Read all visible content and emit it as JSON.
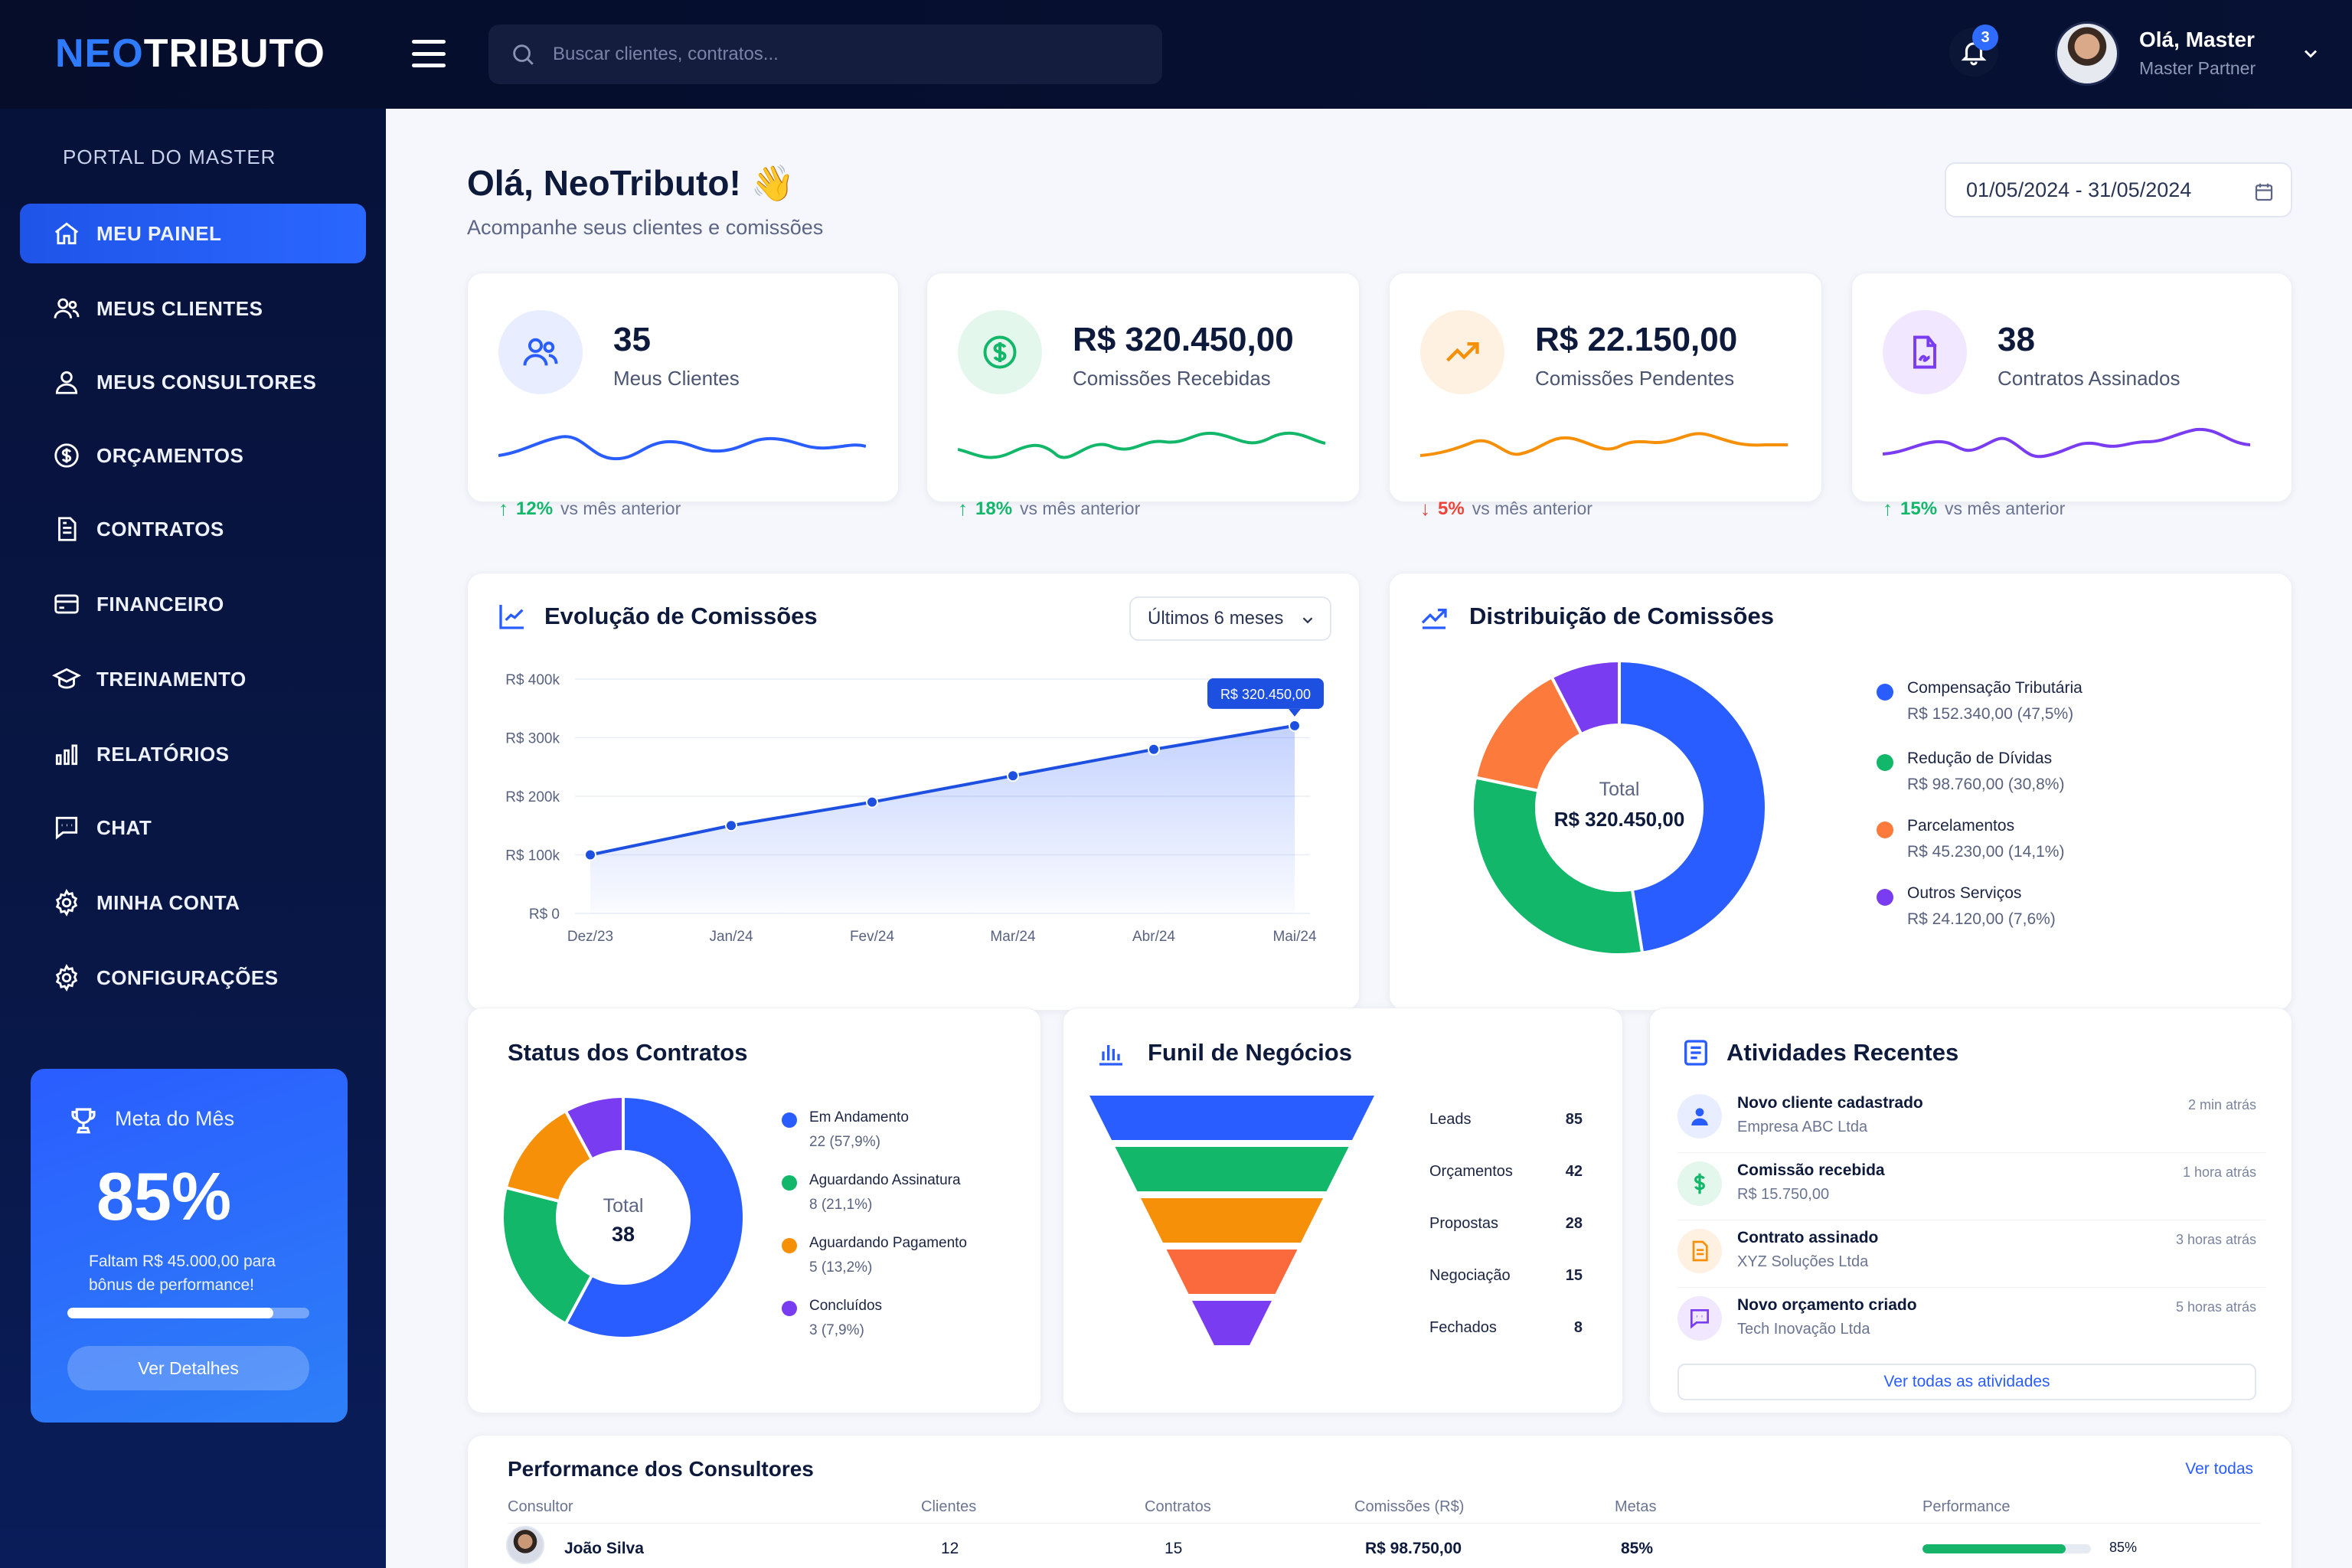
{
  "brand": {
    "neo": "NEO",
    "tributo": "TRIBUTO"
  },
  "search": {
    "placeholder": "Buscar clientes, contratos..."
  },
  "notifications": {
    "count": "3"
  },
  "user": {
    "name": "Olá, Master",
    "role": "Master Partner"
  },
  "sidebar": {
    "title": "PORTAL DO MASTER",
    "items": [
      {
        "label": "MEU PAINEL",
        "icon": "home-icon",
        "active": true
      },
      {
        "label": "MEUS CLIENTES",
        "icon": "users-icon"
      },
      {
        "label": "MEUS CONSULTORES",
        "icon": "user-icon"
      },
      {
        "label": "ORÇAMENTOS",
        "icon": "dollar-circle-icon"
      },
      {
        "label": "CONTRATOS",
        "icon": "document-icon"
      },
      {
        "label": "FINANCEIRO",
        "icon": "card-icon"
      },
      {
        "label": "TREINAMENTO",
        "icon": "graduation-cap-icon"
      },
      {
        "label": "RELATÓRIOS",
        "icon": "bar-chart-icon"
      },
      {
        "label": "CHAT",
        "icon": "chat-icon"
      },
      {
        "label": "MINHA CONTA",
        "icon": "gear-icon"
      },
      {
        "label": "CONFIGURAÇÕES",
        "icon": "gear-icon"
      }
    ]
  },
  "goal": {
    "title": "Meta do Mês",
    "percent": "85%",
    "progress": 0.85,
    "description": "Faltam R$ 45.000,00 para bônus de performance!",
    "button": "Ver Detalhes"
  },
  "header": {
    "greeting": "Olá, NeoTributo! 👋",
    "subtitle": "Acompanhe seus clientes e comissões",
    "date_range": "01/05/2024 - 31/05/2024"
  },
  "stats": [
    {
      "value": "35",
      "label": "Meus Clientes",
      "change": "12%",
      "trend": "up",
      "suffix": "vs mês anterior",
      "color": "#2a5dff",
      "icon": "users-icon"
    },
    {
      "value": "R$ 320.450,00",
      "label": "Comissões Recebidas",
      "change": "18%",
      "trend": "up",
      "suffix": "vs mês anterior",
      "color": "#12b76a",
      "icon": "dollar-circle-icon"
    },
    {
      "value": "R$ 22.150,00",
      "label": "Comissões Pendentes",
      "change": "5%",
      "trend": "down",
      "suffix": "vs mês anterior",
      "color": "#f79009",
      "icon": "trend-up-icon"
    },
    {
      "value": "38",
      "label": "Contratos Assinados",
      "change": "15%",
      "trend": "up",
      "suffix": "vs mês anterior",
      "color": "#7a3cf0",
      "icon": "signed-doc-icon"
    }
  ],
  "evolution": {
    "title": "Evolução de Comissões",
    "period": "Últimos 6 meses",
    "tooltip": "R$ 320.450,00"
  },
  "distribution": {
    "title": "Distribuição de Comissões",
    "total_label": "Total",
    "total_value": "R$ 320.450,00",
    "legend": [
      {
        "name": "Compensação Tributária",
        "value": "R$ 152.340,00 (47,5%)",
        "color": "#2a5dff"
      },
      {
        "name": "Redução de Dívidas",
        "value": "R$ 98.760,00 (30,8%)",
        "color": "#12b76a"
      },
      {
        "name": "Parcelamentos",
        "value": "R$ 45.230,00 (14,1%)",
        "color": "#fb7a3c"
      },
      {
        "name": "Outros Serviços",
        "value": "R$ 24.120,00 (7,6%)",
        "color": "#7a3cf0"
      }
    ]
  },
  "contracts": {
    "title": "Status dos Contratos",
    "total_label": "Total",
    "total_value": "38",
    "legend": [
      {
        "name": "Em Andamento",
        "value": "22 (57,9%)",
        "color": "#2a5dff"
      },
      {
        "name": "Aguardando Assinatura",
        "value": "8 (21,1%)",
        "color": "#12b76a"
      },
      {
        "name": "Aguardando Pagamento",
        "value": "5 (13,2%)",
        "color": "#f79009"
      },
      {
        "name": "Concluídos",
        "value": "3 (7,9%)",
        "color": "#7a3cf0"
      }
    ]
  },
  "funnel": {
    "title": "Funil de Negócios",
    "stages": [
      {
        "name": "Leads",
        "value": "85",
        "color": "#2a5dff"
      },
      {
        "name": "Orçamentos",
        "value": "42",
        "color": "#12b76a"
      },
      {
        "name": "Propostas",
        "value": "28",
        "color": "#f79009"
      },
      {
        "name": "Negociação",
        "value": "15",
        "color": "#fb6a3c"
      },
      {
        "name": "Fechados",
        "value": "8",
        "color": "#7a3cf0"
      }
    ]
  },
  "activities": {
    "title": "Atividades Recentes",
    "items": [
      {
        "title": "Novo cliente cadastrado",
        "sub": "Empresa ABC Ltda",
        "time": "2 min atrás",
        "icon": "user-icon",
        "color": "#2a5dff"
      },
      {
        "title": "Comissão recebida",
        "sub": "R$ 15.750,00",
        "time": "1 hora atrás",
        "icon": "dollar-icon",
        "color": "#12b76a"
      },
      {
        "title": "Contrato assinado",
        "sub": "XYZ Soluções Ltda",
        "time": "3 horas atrás",
        "icon": "document-icon",
        "color": "#f79009"
      },
      {
        "title": "Novo orçamento criado",
        "sub": "Tech Inovação Ltda",
        "time": "5 horas atrás",
        "icon": "chat-icon",
        "color": "#7a3cf0"
      }
    ],
    "button": "Ver todas as atividades"
  },
  "performance": {
    "title": "Performance dos Consultores",
    "link": "Ver todas",
    "columns": [
      "Consultor",
      "Clientes",
      "Contratos",
      "Comissões (R$)",
      "Metas",
      "Performance"
    ],
    "rows": [
      {
        "name": "João Silva",
        "clients": "12",
        "contracts": "15",
        "commissions": "R$ 98.750,00",
        "goal": "85%",
        "performance": "85%",
        "performance_value": 0.85
      }
    ]
  },
  "chart_data": [
    {
      "type": "line",
      "title": "Evolução de Comissões",
      "categories": [
        "Dez/23",
        "Jan/24",
        "Fev/24",
        "Mar/24",
        "Abr/24",
        "Mai/24"
      ],
      "values": [
        100000,
        150000,
        190000,
        235000,
        280000,
        320450
      ],
      "y_ticks": [
        "R$ 0",
        "R$ 100k",
        "R$ 200k",
        "R$ 300k",
        "R$ 400k"
      ],
      "ylim": [
        0,
        400000
      ],
      "grid": true
    },
    {
      "type": "pie",
      "title": "Distribuição de Comissões",
      "labels": [
        "Compensação Tributária",
        "Redução de Dívidas",
        "Parcelamentos",
        "Outros Serviços"
      ],
      "values": [
        47.5,
        30.8,
        14.1,
        7.6
      ]
    },
    {
      "type": "pie",
      "title": "Status dos Contratos",
      "labels": [
        "Em Andamento",
        "Aguardando Assinatura",
        "Aguardando Pagamento",
        "Concluídos"
      ],
      "values": [
        22,
        8,
        5,
        3
      ]
    },
    {
      "type": "bar",
      "title": "Funil de Negócios",
      "categories": [
        "Leads",
        "Orçamentos",
        "Propostas",
        "Negociação",
        "Fechados"
      ],
      "values": [
        85,
        42,
        28,
        15,
        8
      ]
    }
  ]
}
